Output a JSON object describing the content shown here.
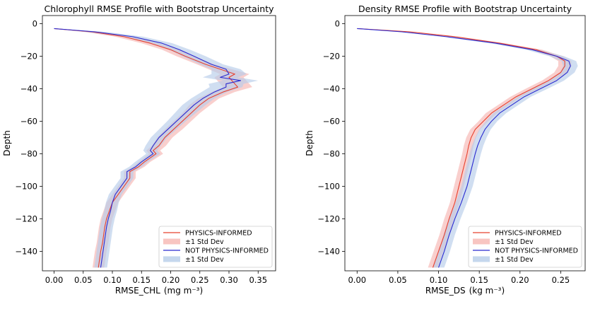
{
  "chart_data": [
    {
      "type": "line",
      "title": "Chlorophyll RMSE Profile with Bootstrap Uncertainty",
      "xlabel": "RMSE_CHL",
      "xlabel_unit": "(mg m⁻³)",
      "ylabel": "Depth",
      "xlim": [
        -0.02,
        0.38
      ],
      "ylim": [
        -152,
        5
      ],
      "xticks": [
        0.0,
        0.05,
        0.1,
        0.15,
        0.2,
        0.25,
        0.3,
        0.35
      ],
      "xtick_labels": [
        "0.00",
        "0.05",
        "0.10",
        "0.15",
        "0.20",
        "0.25",
        "0.30",
        "0.35"
      ],
      "yticks": [
        0,
        -20,
        -40,
        -60,
        -80,
        -100,
        -120,
        -140
      ],
      "ytick_labels": [
        "0",
        "−20",
        "−40",
        "−60",
        "−80",
        "−100",
        "−120",
        "−140"
      ],
      "grid": false,
      "legend_position": "lower-right",
      "series": [
        {
          "name": "PHYSICS-INFORMED",
          "color": "#e8412f",
          "band_label": "±1 Std Dev",
          "band_color": "#f6b6b2",
          "depth": [
            -3,
            -5,
            -8,
            -12,
            -16,
            -20,
            -25,
            -28,
            -31,
            -33,
            -35,
            -37,
            -39,
            -42,
            -46,
            -50,
            -55,
            -60,
            -65,
            -70,
            -75,
            -78,
            -80,
            -85,
            -88,
            -91,
            -95,
            -100,
            -105,
            -110,
            -115,
            -120,
            -125,
            -130,
            -135,
            -140,
            -145,
            -150
          ],
          "rmse": [
            0.0,
            0.065,
            0.12,
            0.165,
            0.2,
            0.225,
            0.26,
            0.285,
            0.31,
            0.3,
            0.305,
            0.31,
            0.315,
            0.29,
            0.265,
            0.25,
            0.235,
            0.22,
            0.205,
            0.19,
            0.18,
            0.17,
            0.175,
            0.155,
            0.145,
            0.13,
            0.13,
            0.12,
            0.11,
            0.1,
            0.095,
            0.09,
            0.087,
            0.085,
            0.083,
            0.08,
            0.078,
            0.076
          ],
          "std": [
            0.0,
            0.015,
            0.015,
            0.015,
            0.015,
            0.015,
            0.015,
            0.02,
            0.025,
            0.025,
            0.025,
            0.025,
            0.025,
            0.02,
            0.018,
            0.018,
            0.015,
            0.015,
            0.015,
            0.013,
            0.012,
            0.012,
            0.012,
            0.01,
            0.01,
            0.01,
            0.01,
            0.01,
            0.01,
            0.01,
            0.01,
            0.01,
            0.01,
            0.01,
            0.01,
            0.01,
            0.01,
            0.01
          ]
        },
        {
          "name": "NOT PHYSICS-INFORMED",
          "color": "#2a2ad0",
          "band_label": "±1 Std Dev",
          "band_color": "#b7cde9",
          "depth": [
            -3,
            -5,
            -8,
            -12,
            -16,
            -20,
            -25,
            -28,
            -31,
            -33,
            -35,
            -37,
            -39,
            -42,
            -46,
            -50,
            -55,
            -60,
            -65,
            -70,
            -75,
            -78,
            -80,
            -85,
            -88,
            -91,
            -95,
            -100,
            -105,
            -110,
            -115,
            -120,
            -125,
            -130,
            -135,
            -140,
            -145,
            -150
          ],
          "rmse": [
            0.0,
            0.07,
            0.135,
            0.185,
            0.215,
            0.24,
            0.27,
            0.295,
            0.3,
            0.285,
            0.32,
            0.295,
            0.295,
            0.275,
            0.255,
            0.24,
            0.225,
            0.21,
            0.195,
            0.18,
            0.17,
            0.165,
            0.17,
            0.15,
            0.14,
            0.125,
            0.125,
            0.115,
            0.105,
            0.1,
            0.097,
            0.093,
            0.09,
            0.088,
            0.086,
            0.084,
            0.082,
            0.08
          ],
          "std": [
            0.0,
            0.018,
            0.018,
            0.018,
            0.018,
            0.02,
            0.02,
            0.025,
            0.03,
            0.03,
            0.03,
            0.03,
            0.028,
            0.022,
            0.02,
            0.02,
            0.018,
            0.016,
            0.015,
            0.014,
            0.013,
            0.012,
            0.012,
            0.011,
            0.011,
            0.011,
            0.011,
            0.011,
            0.011,
            0.011,
            0.011,
            0.011,
            0.011,
            0.011,
            0.011,
            0.011,
            0.011,
            0.011
          ]
        }
      ]
    },
    {
      "type": "line",
      "title": "Density RMSE Profile with Bootstrap Uncertainty",
      "xlabel": "RMSE_DS",
      "xlabel_unit": "(kg m⁻³)",
      "ylabel": "Depth",
      "xlim": [
        -0.015,
        0.28
      ],
      "ylim": [
        -152,
        5
      ],
      "xticks": [
        0.0,
        0.05,
        0.1,
        0.15,
        0.2,
        0.25
      ],
      "xtick_labels": [
        "0.00",
        "0.05",
        "0.10",
        "0.15",
        "0.20",
        "0.25"
      ],
      "yticks": [
        0,
        -20,
        -40,
        -60,
        -80,
        -100,
        -120,
        -140
      ],
      "ytick_labels": [
        "0",
        "−20",
        "−40",
        "−60",
        "−80",
        "−100",
        "−120",
        "−140"
      ],
      "grid": false,
      "legend_position": "lower-right",
      "series": [
        {
          "name": "PHYSICS-INFORMED",
          "color": "#e8412f",
          "band_label": "±1 Std Dev",
          "band_color": "#f6b6b2",
          "depth": [
            -3,
            -5,
            -8,
            -12,
            -16,
            -20,
            -23,
            -26,
            -30,
            -35,
            -40,
            -45,
            -50,
            -55,
            -60,
            -65,
            -70,
            -75,
            -80,
            -90,
            -100,
            -110,
            -120,
            -130,
            -140,
            -150
          ],
          "rmse": [
            0.0,
            0.065,
            0.12,
            0.175,
            0.22,
            0.245,
            0.255,
            0.255,
            0.25,
            0.235,
            0.215,
            0.195,
            0.18,
            0.165,
            0.155,
            0.145,
            0.14,
            0.137,
            0.135,
            0.13,
            0.125,
            0.12,
            0.113,
            0.107,
            0.1,
            0.093
          ],
          "std": [
            0.0,
            0.004,
            0.005,
            0.006,
            0.007,
            0.008,
            0.008,
            0.008,
            0.008,
            0.008,
            0.008,
            0.007,
            0.007,
            0.007,
            0.006,
            0.006,
            0.006,
            0.006,
            0.006,
            0.006,
            0.006,
            0.006,
            0.006,
            0.006,
            0.006,
            0.006
          ]
        },
        {
          "name": "NOT PHYSICS-INFORMED",
          "color": "#2a2ad0",
          "band_label": "±1 Std Dev",
          "band_color": "#b7cde9",
          "depth": [
            -3,
            -5,
            -8,
            -12,
            -16,
            -20,
            -23,
            -26,
            -30,
            -35,
            -40,
            -45,
            -50,
            -55,
            -60,
            -65,
            -70,
            -75,
            -80,
            -90,
            -100,
            -110,
            -120,
            -130,
            -140,
            -150
          ],
          "rmse": [
            0.0,
            0.055,
            0.11,
            0.17,
            0.215,
            0.245,
            0.26,
            0.262,
            0.258,
            0.245,
            0.225,
            0.205,
            0.19,
            0.175,
            0.165,
            0.157,
            0.152,
            0.148,
            0.145,
            0.14,
            0.135,
            0.128,
            0.12,
            0.113,
            0.107,
            0.1
          ],
          "std": [
            0.0,
            0.005,
            0.006,
            0.007,
            0.008,
            0.009,
            0.009,
            0.009,
            0.009,
            0.009,
            0.009,
            0.008,
            0.008,
            0.008,
            0.007,
            0.007,
            0.007,
            0.007,
            0.007,
            0.007,
            0.007,
            0.007,
            0.007,
            0.007,
            0.007,
            0.007
          ]
        }
      ]
    }
  ]
}
